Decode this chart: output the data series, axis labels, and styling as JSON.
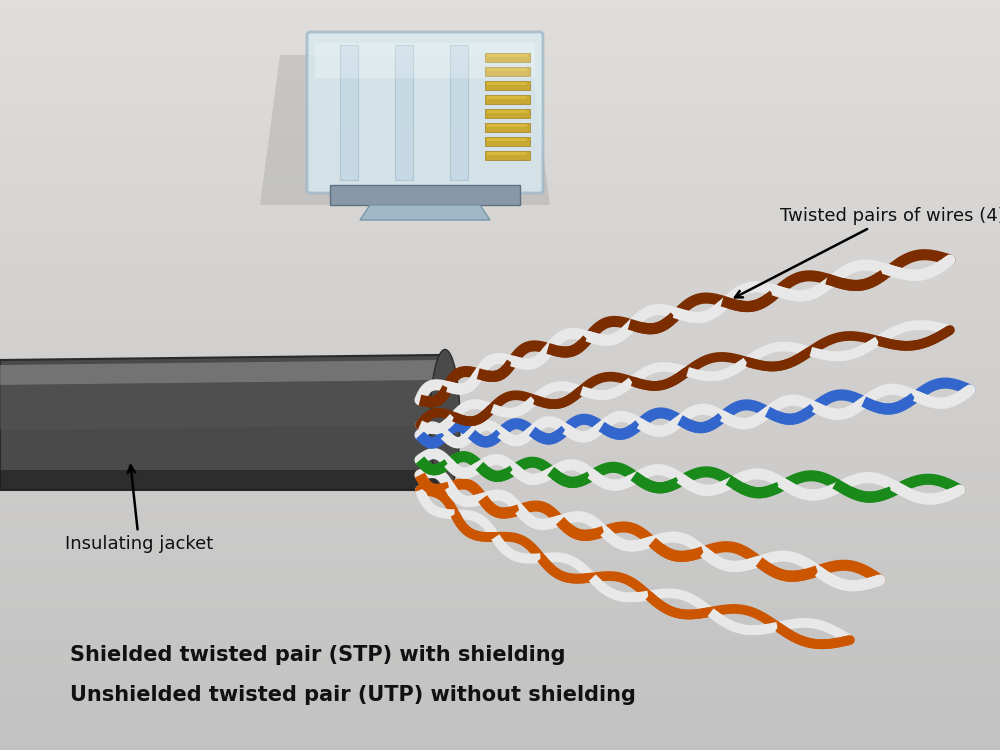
{
  "bg_color_top": "#c8c8c8",
  "bg_color_mid": "#d8d8d8",
  "bg_color_bot": "#b8b0a8",
  "title_line1": "Shielded twisted pair (STP) with shielding",
  "title_line2": "Unshielded twisted pair (UTP) without shielding",
  "label_twisted": "Twisted pairs of wires (4)",
  "label_jacket": "Insulating jacket",
  "jacket_color": "#4a4a4a",
  "jacket_highlight": "#787878",
  "jacket_shadow": "#2a2a2a",
  "connector_body": "#c5dce8",
  "connector_edge": "#9ab0c0",
  "gold_color": "#c8a830",
  "brown_color": "#7B2D00",
  "white_color": "#e8e8e8",
  "blue_color": "#3366cc",
  "green_color": "#1a8a1a",
  "orange_color": "#cc5500",
  "bg_gradient": true,
  "text_fontsize": 15,
  "label_fontsize": 13
}
